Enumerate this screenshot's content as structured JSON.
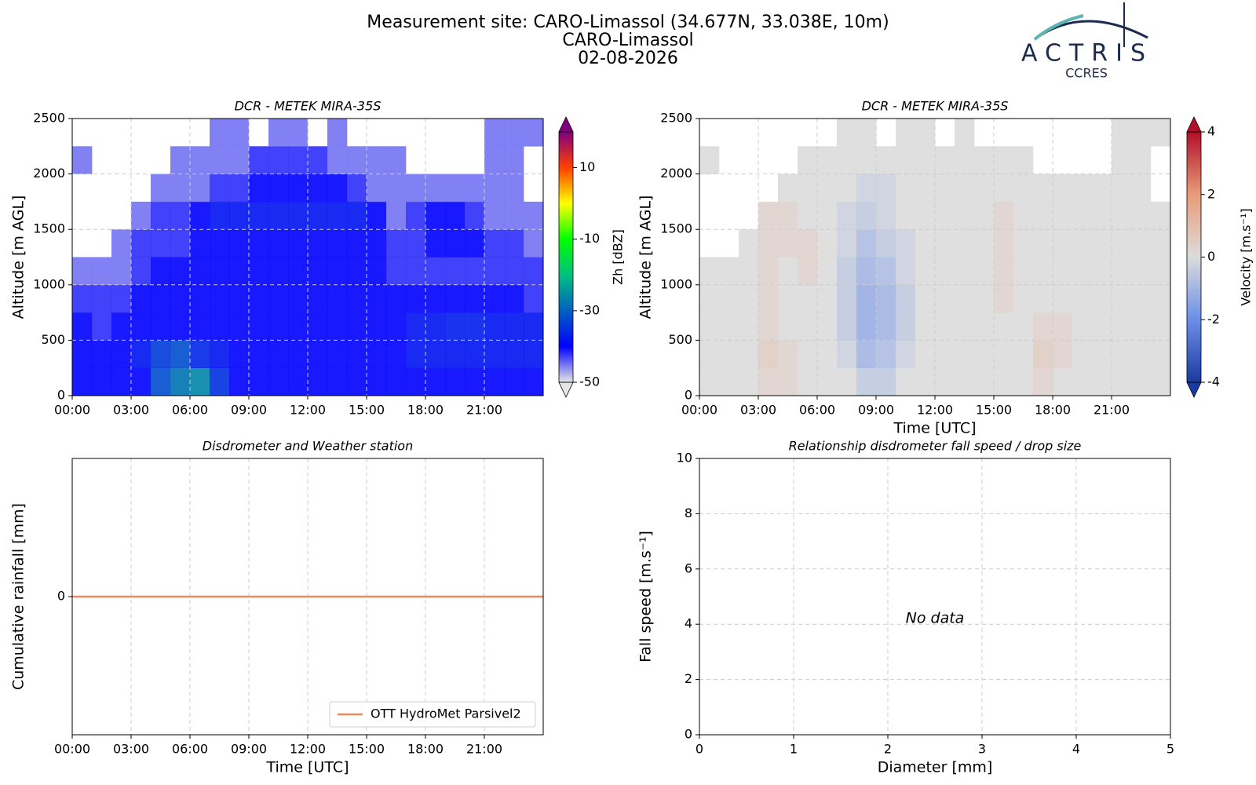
{
  "header": {
    "lines": [
      "Measurement site: CARO-Limassol (34.677N, 33.038E, 10m)",
      "CARO-Limassol",
      "02-08-2026"
    ],
    "logo": {
      "name": "ACTRIS",
      "subtitle": "CCRES"
    }
  },
  "chart_data": [
    {
      "type": "heatmap",
      "title": "DCR - METEK MIRA-35S",
      "ylabel": "Altitude [m AGL]",
      "xlim": [
        0,
        24
      ],
      "xticks": [
        {
          "value": 0,
          "label": "00:00"
        },
        {
          "value": 3,
          "label": "03:00"
        },
        {
          "value": 6,
          "label": "06:00"
        },
        {
          "value": 9,
          "label": "09:00"
        },
        {
          "value": 12,
          "label": "12:00"
        },
        {
          "value": 15,
          "label": "15:00"
        },
        {
          "value": 18,
          "label": "18:00"
        },
        {
          "value": 21,
          "label": "21:00"
        }
      ],
      "ylim": [
        0,
        2500
      ],
      "yticks": [
        0,
        500,
        1000,
        1500,
        2000,
        2500
      ],
      "grid": true,
      "xbins": [
        0,
        1,
        2,
        3,
        4,
        5,
        6,
        7,
        8,
        9,
        10,
        11,
        12,
        13,
        14,
        15,
        16,
        17,
        18,
        19,
        20,
        21,
        22,
        23,
        24
      ],
      "ybins": [
        0,
        250,
        500,
        750,
        1000,
        1250,
        1500,
        1750,
        2000,
        2250,
        2500
      ],
      "values": [
        [
          -40,
          -40,
          -40,
          -40,
          -32,
          -28,
          -26,
          -35,
          -40,
          -40,
          -40,
          -40,
          -40,
          -40,
          -40,
          -40,
          -40,
          -40,
          -40,
          -40,
          -40,
          -40,
          -40,
          -40
        ],
        [
          -40,
          -40,
          -40,
          -38,
          -34,
          -32,
          -36,
          -38,
          -40,
          -40,
          -40,
          -40,
          -40,
          -40,
          -40,
          -40,
          -40,
          -38,
          -38,
          -38,
          -38,
          -38,
          -38,
          -38
        ],
        [
          -40,
          -42,
          -40,
          -40,
          -40,
          -40,
          -40,
          -40,
          -40,
          -40,
          -40,
          -40,
          -40,
          -40,
          -40,
          -40,
          -40,
          -38,
          -38,
          -37,
          -37,
          -38,
          -38,
          -38
        ],
        [
          -42,
          -42,
          -42,
          -40,
          -40,
          -40,
          -40,
          -40,
          -40,
          -40,
          -40,
          -40,
          -40,
          -40,
          -40,
          -40,
          -40,
          -40,
          -40,
          -40,
          -40,
          -40,
          -40,
          -42
        ],
        [
          -45,
          -45,
          -45,
          -42,
          -40,
          -40,
          -40,
          -40,
          -40,
          -40,
          -40,
          -40,
          -40,
          -40,
          -40,
          -40,
          -42,
          -42,
          -42,
          -42,
          -42,
          -42,
          -42,
          -42
        ],
        [
          null,
          null,
          -45,
          -42,
          -42,
          -42,
          -40,
          -40,
          -40,
          -40,
          -40,
          -40,
          -40,
          -40,
          -40,
          -40,
          -42,
          -42,
          -40,
          -40,
          -40,
          -42,
          -42,
          -45
        ],
        [
          null,
          null,
          null,
          -45,
          -42,
          -42,
          -40,
          -38,
          -38,
          -38,
          -38,
          -38,
          -38,
          -38,
          -38,
          -40,
          -45,
          -42,
          -40,
          -40,
          -42,
          -45,
          -45,
          -45
        ],
        [
          null,
          null,
          null,
          null,
          -45,
          -45,
          -45,
          -42,
          -42,
          -40,
          -40,
          -40,
          -40,
          -40,
          -42,
          -45,
          -45,
          -45,
          -45,
          -45,
          -45,
          -45,
          -45,
          null
        ],
        [
          -45,
          null,
          null,
          null,
          null,
          -45,
          -45,
          -45,
          -45,
          -42,
          -42,
          -42,
          -42,
          -45,
          -45,
          -45,
          -45,
          null,
          null,
          null,
          null,
          -45,
          -45,
          null
        ],
        [
          null,
          null,
          null,
          null,
          null,
          null,
          null,
          -45,
          -45,
          null,
          -45,
          -45,
          null,
          -45,
          null,
          null,
          null,
          null,
          null,
          null,
          null,
          -45,
          -45,
          -45
        ]
      ],
      "colorbar_label": "Zh [dBZ]",
      "clim": [
        -50,
        20
      ],
      "cticks": [
        -50,
        -30,
        -10,
        10
      ],
      "colormap": [
        "#e6e6e6",
        "#0000ff",
        "#0060c0",
        "#00c080",
        "#00ff00",
        "#ffff00",
        "#ff4000",
        "#800080"
      ]
    },
    {
      "type": "heatmap",
      "title": "DCR - METEK MIRA-35S",
      "ylabel": "Altitude [m AGL]",
      "xlabel": "Time [UTC]",
      "xlim": [
        0,
        24
      ],
      "xticks": [
        {
          "value": 0,
          "label": "00:00"
        },
        {
          "value": 3,
          "label": "03:00"
        },
        {
          "value": 6,
          "label": "06:00"
        },
        {
          "value": 9,
          "label": "09:00"
        },
        {
          "value": 12,
          "label": "12:00"
        },
        {
          "value": 15,
          "label": "15:00"
        },
        {
          "value": 18,
          "label": "18:00"
        },
        {
          "value": 21,
          "label": "21:00"
        }
      ],
      "ylim": [
        0,
        2500
      ],
      "yticks": [
        0,
        500,
        1000,
        1500,
        2000,
        2500
      ],
      "grid": true,
      "xbins": [
        0,
        1,
        2,
        3,
        4,
        5,
        6,
        7,
        8,
        9,
        10,
        11,
        12,
        13,
        14,
        15,
        16,
        17,
        18,
        19,
        20,
        21,
        22,
        23,
        24
      ],
      "ybins": [
        0,
        250,
        500,
        750,
        1000,
        1250,
        1500,
        1750,
        2000,
        2250,
        2500
      ],
      "values": [
        [
          0,
          0,
          0,
          0.3,
          0.3,
          0,
          0,
          0,
          -0.5,
          -0.5,
          0,
          0,
          0,
          0,
          0,
          0,
          0,
          0.3,
          0,
          0,
          0,
          0,
          0,
          0
        ],
        [
          0,
          0,
          0,
          0.5,
          0.3,
          0,
          0,
          -0.3,
          -1,
          -0.8,
          -0.3,
          0,
          0,
          0,
          0,
          0,
          0,
          0.5,
          0.3,
          0,
          0,
          0,
          0,
          0
        ],
        [
          0,
          0,
          0,
          0.3,
          0,
          0,
          0,
          -0.5,
          -1.2,
          -1,
          -0.5,
          0,
          0,
          0,
          0,
          0,
          0,
          0.3,
          0.3,
          0,
          0,
          0,
          0,
          0
        ],
        [
          0,
          0,
          0,
          0.3,
          0,
          0,
          0,
          -0.5,
          -1.2,
          -1,
          -0.5,
          0,
          0,
          0,
          0,
          0.3,
          0,
          0,
          0,
          0,
          0,
          0,
          0,
          0
        ],
        [
          0,
          0,
          0,
          0.3,
          0,
          0.3,
          0,
          -0.5,
          -1,
          -0.8,
          -0.3,
          0,
          0,
          0,
          0,
          0.3,
          0,
          0,
          0,
          0,
          0,
          0,
          0,
          0
        ],
        [
          null,
          null,
          0,
          0.3,
          0.3,
          0.3,
          0,
          -0.3,
          -0.8,
          -0.5,
          -0.3,
          0,
          0,
          0,
          0,
          0.3,
          0,
          0,
          0,
          0,
          0,
          0,
          0,
          0
        ],
        [
          null,
          null,
          null,
          0.3,
          0.3,
          0,
          0,
          -0.3,
          -0.5,
          -0.3,
          0,
          0,
          0,
          0,
          0,
          0.3,
          0,
          0,
          0,
          0,
          0,
          0,
          0,
          0
        ],
        [
          null,
          null,
          null,
          null,
          0,
          0,
          0,
          0,
          -0.3,
          -0.3,
          0,
          0,
          0,
          0,
          0,
          0,
          0,
          0,
          0,
          0,
          0,
          0,
          0,
          null
        ],
        [
          0,
          null,
          null,
          null,
          null,
          0,
          0,
          0,
          0,
          0,
          0,
          0,
          0,
          0,
          0,
          0,
          0,
          null,
          null,
          null,
          null,
          0,
          0,
          null
        ],
        [
          null,
          null,
          null,
          null,
          null,
          null,
          null,
          0,
          0,
          null,
          0,
          0,
          null,
          0,
          null,
          null,
          null,
          null,
          null,
          null,
          null,
          0,
          0,
          0
        ]
      ],
      "colorbar_label": "Velocity [m.s⁻¹]",
      "clim": [
        -4,
        4
      ],
      "cticks": [
        -4,
        -2,
        0,
        2,
        4
      ],
      "colormap": [
        "#1a3ba0",
        "#6a8ee8",
        "#dcdcdc",
        "#e89b78",
        "#b0102a"
      ]
    },
    {
      "type": "line",
      "title": "Disdrometer and Weather station",
      "ylabel": "Cumulative rainfall [mm]",
      "xlabel": "Time [UTC]",
      "xlim": [
        0,
        24
      ],
      "xticks": [
        {
          "value": 0,
          "label": "00:00"
        },
        {
          "value": 3,
          "label": "03:00"
        },
        {
          "value": 6,
          "label": "06:00"
        },
        {
          "value": 9,
          "label": "09:00"
        },
        {
          "value": 12,
          "label": "12:00"
        },
        {
          "value": 15,
          "label": "15:00"
        },
        {
          "value": 18,
          "label": "18:00"
        },
        {
          "value": 21,
          "label": "21:00"
        }
      ],
      "ylim": [
        -0.055,
        0.055
      ],
      "yticks": [
        0
      ],
      "grid": true,
      "legend": "lower right",
      "series": [
        {
          "name": "OTT HydroMet Parsivel2",
          "color": "#ee8a5c",
          "x": [
            0,
            24
          ],
          "values": [
            0,
            0
          ]
        }
      ]
    },
    {
      "type": "scatter",
      "title": "Relationship disdrometer fall speed / drop size",
      "ylabel": "Fall speed [m.s⁻¹]",
      "xlabel": "Diameter [mm]",
      "xlim": [
        0,
        5
      ],
      "xticks": [
        0,
        1,
        2,
        3,
        4,
        5
      ],
      "ylim": [
        0,
        10
      ],
      "yticks": [
        0,
        2,
        4,
        6,
        8,
        10
      ],
      "grid": true,
      "annotation": "No data",
      "x": [],
      "values": []
    }
  ]
}
